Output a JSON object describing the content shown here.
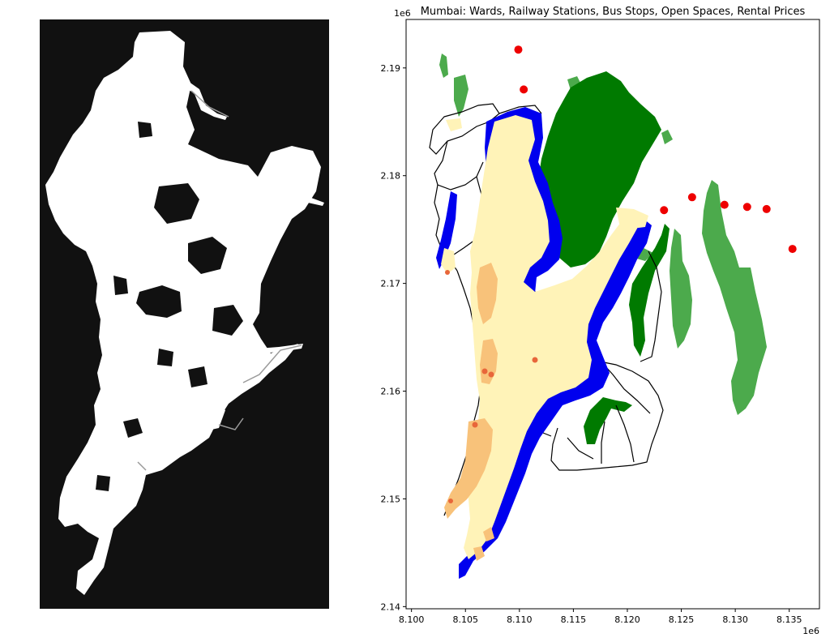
{
  "figure": {
    "left_panel": {
      "background": "#111111",
      "network_color": "#ffffff"
    },
    "right_panel": {
      "title": "Mumbai: Wards, Railway Stations, Bus Stops, Open Spaces, Rental Prices",
      "x_offset_label": "1e6",
      "y_offset_label": "1e6",
      "colors": {
        "open_space_dark": "#007a00",
        "open_space_light": "#4caa4c",
        "bus_stops": "#0000ee",
        "railway_stations": "#ee0000",
        "rent_low": "#fff3b8",
        "rent_mid": "#f8c27a",
        "rent_high": "#e8663a",
        "ward_boundary": "#000000"
      }
    }
  },
  "chart_data": {
    "type": "scatter",
    "title": "Mumbai: Wards, Railway Stations, Bus Stops, Open Spaces, Rental Prices",
    "xlabel": "",
    "ylabel": "",
    "x_scale_note": "1e6",
    "y_scale_note": "1e6",
    "xlim": [
      8.0995,
      8.1378
    ],
    "ylim": [
      2.1398,
      2.1945
    ],
    "x_ticks": [
      8.1,
      8.105,
      8.11,
      8.115,
      8.12,
      8.125,
      8.13,
      8.135
    ],
    "x_tick_labels": [
      "8.100",
      "8.105",
      "8.110",
      "8.115",
      "8.120",
      "8.125",
      "8.130",
      "8.135"
    ],
    "y_ticks": [
      2.14,
      2.15,
      2.16,
      2.17,
      2.18,
      2.19
    ],
    "y_tick_labels": [
      "2.14",
      "2.15",
      "2.16",
      "2.17",
      "2.18",
      "2.19"
    ],
    "grid": false,
    "series": [
      {
        "name": "railway stations",
        "color": "#ee0000",
        "points": [
          [
            8.1099,
            2.1917
          ],
          [
            8.1104,
            2.188
          ],
          [
            8.1234,
            2.1768
          ],
          [
            8.126,
            2.178
          ],
          [
            8.129,
            2.1773
          ],
          [
            8.1311,
            2.1771
          ],
          [
            8.1329,
            2.1769
          ],
          [
            8.1353,
            2.1732
          ]
        ]
      }
    ]
  }
}
